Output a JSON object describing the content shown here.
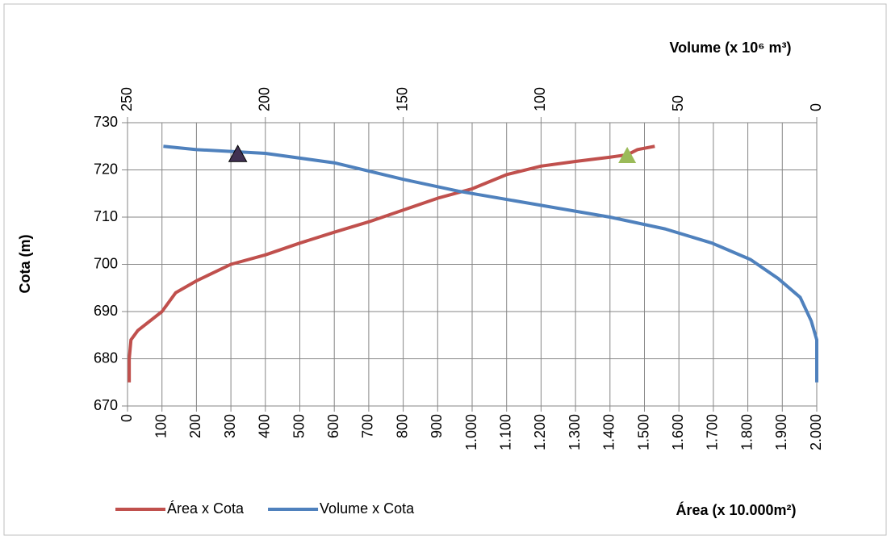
{
  "chart_data": {
    "type": "line",
    "x_label": "Área (x 10.000m²)",
    "x2_label": "Volume (x 10⁶ m³)",
    "y_label": "Cota (m)",
    "xlim": [
      0,
      2000
    ],
    "xticks": [
      0,
      100,
      200,
      300,
      400,
      500,
      600,
      700,
      800,
      900,
      {
        "value": 1000,
        "label": "1.000"
      },
      {
        "value": 1100,
        "label": "1.100"
      },
      {
        "value": 1200,
        "label": "1.200"
      },
      {
        "value": 1300,
        "label": "1.300"
      },
      {
        "value": 1400,
        "label": "1.400"
      },
      {
        "value": 1500,
        "label": "1.500"
      },
      {
        "value": 1600,
        "label": "1.600"
      },
      {
        "value": 1700,
        "label": "1.700"
      },
      {
        "value": 1800,
        "label": "1.800"
      },
      {
        "value": 1900,
        "label": "1.900"
      },
      {
        "value": 2000,
        "label": "2.000"
      }
    ],
    "x2lim": [
      250,
      0
    ],
    "x2ticks": [
      250,
      200,
      150,
      100,
      50,
      0
    ],
    "ylim": [
      670,
      730
    ],
    "yticks": [
      670,
      680,
      690,
      700,
      710,
      720,
      730
    ],
    "grid": true,
    "legend": "bottom-left",
    "series": [
      {
        "name": "Área x Cota",
        "color": "#c0504d",
        "axis": "x",
        "x": [
          5,
          5,
          10,
          30,
          100,
          140,
          200,
          300,
          400,
          500,
          600,
          700,
          800,
          900,
          1000,
          1050,
          1100,
          1200,
          1300,
          1400,
          1450,
          1480,
          1530
        ],
        "values": [
          675,
          680,
          684,
          686,
          690,
          694,
          696.5,
          700,
          702,
          704.5,
          706.8,
          709,
          711.5,
          714,
          716,
          717.5,
          719,
          720.8,
          721.8,
          722.7,
          723.2,
          724.3,
          725
        ]
      },
      {
        "name": "Volume x Cota",
        "color": "#4f81bd",
        "axis": "x2",
        "x": [
          0,
          0,
          2,
          6,
          14,
          24,
          38,
          55,
          75,
          100,
          130,
          150,
          175,
          200,
          225,
          237
        ],
        "values": [
          675,
          684,
          688,
          693,
          697,
          701,
          704.5,
          707.5,
          710,
          712.5,
          715.5,
          718,
          721.5,
          723.5,
          724.3,
          725
        ]
      }
    ],
    "markers": [
      {
        "x": [
          320
        ],
        "values": [
          723.3
        ],
        "color": "#403152"
      },
      {
        "x": [
          1450
        ],
        "values": [
          723
        ],
        "color": "#9bbb59"
      }
    ]
  }
}
